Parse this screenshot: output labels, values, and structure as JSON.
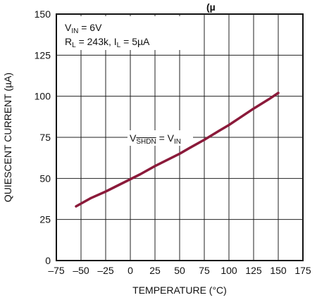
{
  "chart_data": {
    "type": "line",
    "title_fragment": "(µ",
    "xlabel": "TEMPERATURE (°C)",
    "ylabel": "QUIESCENT CURRENT (µA)",
    "xlim": [
      -75,
      175
    ],
    "ylim": [
      0,
      150
    ],
    "x_ticks": [
      -75,
      -50,
      -25,
      0,
      25,
      50,
      75,
      100,
      125,
      150,
      175
    ],
    "y_ticks": [
      0,
      25,
      50,
      75,
      100,
      125,
      150
    ],
    "x_tick_labels": [
      "–75",
      "–50",
      "–25",
      "0",
      "25",
      "50",
      "75",
      "100",
      "125",
      "150",
      "175"
    ],
    "y_tick_labels": [
      "0",
      "25",
      "50",
      "75",
      "100",
      "125",
      "150"
    ],
    "grid": true,
    "line_color": "#8b1a3a",
    "annotations": {
      "conditions_line1": {
        "main": "V",
        "sub": "IN",
        "rest": " = 6V"
      },
      "conditions_line2": {
        "main": "R",
        "sub": "L",
        "mid": " = 243k, I",
        "sub2": "L",
        "rest": " = 5µA"
      },
      "curve_label": {
        "main": "V",
        "sub": "SHDN",
        "mid": " = V",
        "sub2": "IN"
      }
    },
    "series": [
      {
        "points": [
          [
            -55,
            33
          ],
          [
            -40,
            38
          ],
          [
            -25,
            42
          ],
          [
            -10,
            46.5
          ],
          [
            0,
            49.5
          ],
          [
            10,
            52.5
          ],
          [
            25,
            57.5
          ],
          [
            40,
            62
          ],
          [
            50,
            65
          ],
          [
            60,
            68.5
          ],
          [
            75,
            73.5
          ],
          [
            90,
            79
          ],
          [
            100,
            82.5
          ],
          [
            110,
            86.5
          ],
          [
            125,
            92.5
          ],
          [
            140,
            98
          ],
          [
            150,
            102
          ]
        ]
      }
    ]
  }
}
